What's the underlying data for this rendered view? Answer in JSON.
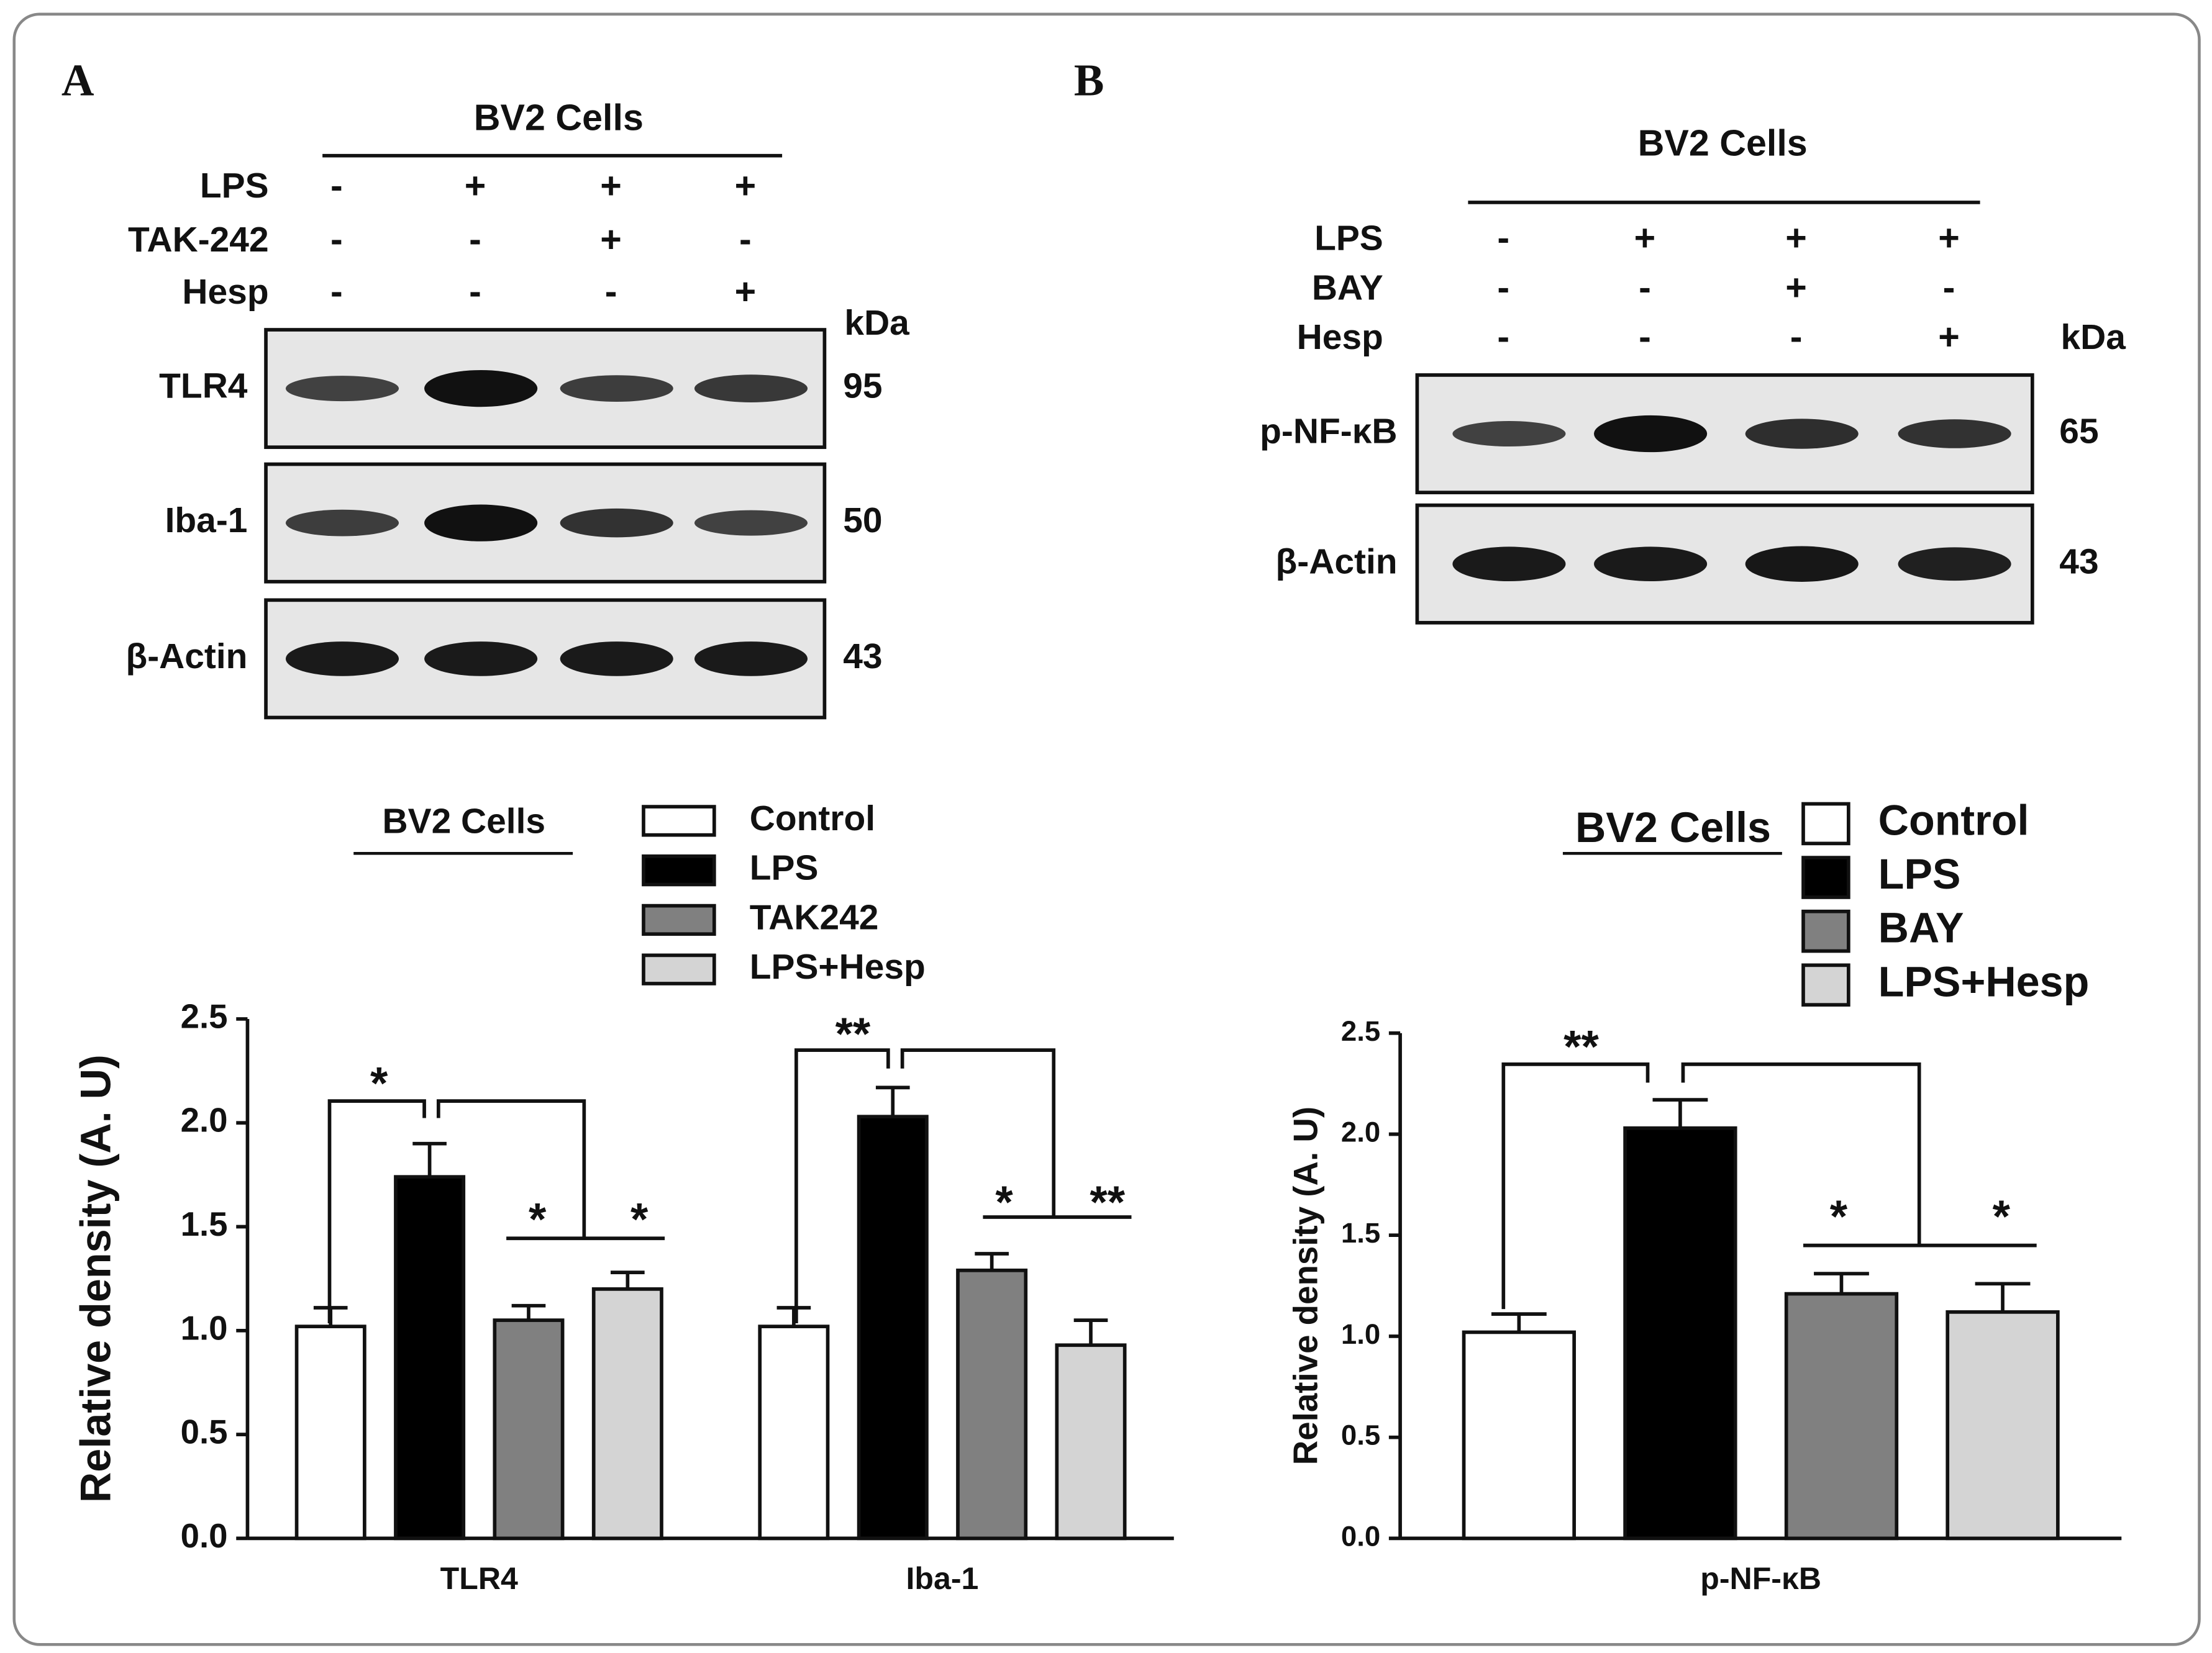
{
  "panel_labels": [
    "A",
    "B"
  ],
  "blots": [
    {
      "header": "BV2 Cells",
      "unit": "kDa",
      "conditions": [
        {
          "name": "LPS",
          "signs": [
            "-",
            "+",
            "+",
            "+"
          ]
        },
        {
          "name": "TAK-242",
          "signs": [
            "-",
            "-",
            "+",
            "-"
          ]
        },
        {
          "name": "Hesp",
          "signs": [
            "-",
            "-",
            "-",
            "+"
          ]
        }
      ],
      "bands": [
        {
          "name": "TLR4",
          "kda": "95"
        },
        {
          "name": "Iba-1",
          "kda": "50"
        },
        {
          "name": "β-Actin",
          "kda": "43"
        }
      ]
    },
    {
      "header": "BV2 Cells",
      "unit": "kDa",
      "conditions": [
        {
          "name": "LPS",
          "signs": [
            "-",
            "+",
            "+",
            "+"
          ]
        },
        {
          "name": "BAY",
          "signs": [
            "-",
            "-",
            "+",
            "-"
          ]
        },
        {
          "name": "Hesp",
          "signs": [
            "-",
            "-",
            "-",
            "+"
          ]
        }
      ],
      "bands": [
        {
          "name": "p-NF-κB",
          "kda": "65"
        },
        {
          "name": "β-Actin",
          "kda": "43"
        }
      ]
    }
  ],
  "chart_data": [
    {
      "type": "bar",
      "legend_title": "BV2 Cells",
      "y_label": "Relative density (A. U)",
      "categories": [
        "TLR4",
        "Iba-1"
      ],
      "series": [
        {
          "name": "Control",
          "color": "#ffffff",
          "values": [
            1.02,
            1.02
          ],
          "errors": [
            0.09,
            0.09
          ]
        },
        {
          "name": "LPS",
          "color": "#000000",
          "values": [
            1.74,
            2.03
          ],
          "errors": [
            0.16,
            0.14
          ]
        },
        {
          "name": "TAK242",
          "color": "#808080",
          "values": [
            1.05,
            1.29
          ],
          "errors": [
            0.07,
            0.08
          ]
        },
        {
          "name": "LPS+Hesp",
          "color": "#d4d4d4",
          "values": [
            1.2,
            0.93
          ],
          "errors": [
            0.08,
            0.12
          ]
        }
      ],
      "ylim": [
        0,
        2.5
      ],
      "yticks": [
        {
          "value": 0,
          "label": "0.0"
        },
        0.5,
        {
          "value": 1,
          "label": "1.0"
        },
        1.5,
        {
          "value": 2,
          "label": "2.0"
        },
        2.5
      ],
      "annotations": [
        "*",
        "*",
        "*",
        "**",
        "*",
        "**"
      ]
    },
    {
      "type": "bar",
      "legend_title": "BV2 Cells",
      "y_label": "Relative density (A. U)",
      "categories": [
        "p-NF-κB"
      ],
      "series": [
        {
          "name": "Control",
          "color": "#ffffff",
          "values": [
            1.02
          ],
          "errors": [
            0.09
          ]
        },
        {
          "name": "LPS",
          "color": "#000000",
          "values": [
            2.03
          ],
          "errors": [
            0.14
          ]
        },
        {
          "name": "BAY",
          "color": "#808080",
          "values": [
            1.21
          ],
          "errors": [
            0.1
          ]
        },
        {
          "name": "LPS+Hesp",
          "color": "#d4d4d4",
          "values": [
            1.12
          ],
          "errors": [
            0.14
          ]
        }
      ],
      "ylim": [
        0,
        2.5
      ],
      "yticks": [
        {
          "value": 0,
          "label": "0.0"
        },
        0.5,
        {
          "value": 1,
          "label": "1.0"
        },
        1.5,
        {
          "value": 2,
          "label": "2.0"
        },
        2.5
      ],
      "annotations": [
        "**",
        "*",
        "*"
      ]
    }
  ]
}
